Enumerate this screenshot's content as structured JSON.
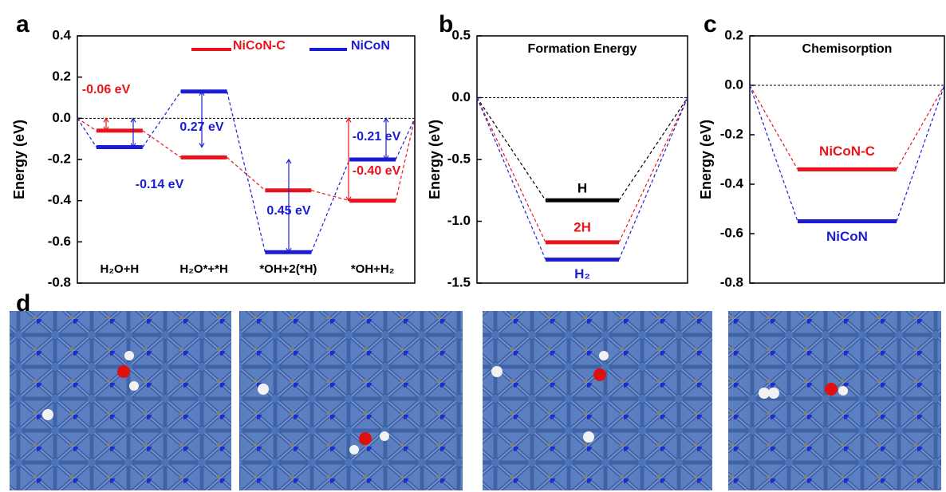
{
  "panel_labels": [
    "a",
    "b",
    "c",
    "d"
  ],
  "chart_data": [
    {
      "type": "energy_diagram",
      "ylabel": "Energy (eV)",
      "categories": [
        "H₂O+H",
        "H₂O*+*H",
        "*OH+2(*H)",
        "*OH+H₂"
      ],
      "series": [
        {
          "name": "NiCoN-C",
          "color": "#e8141c",
          "values": [
            -0.06,
            -0.19,
            -0.35,
            -0.4
          ]
        },
        {
          "name": "NiCoN",
          "color": "#1c1cd6",
          "values": [
            -0.14,
            0.13,
            -0.65,
            -0.2
          ]
        }
      ],
      "annotations": [
        {
          "text": "-0.06 eV",
          "color": "#e8141c"
        },
        {
          "text": "-0.14 eV",
          "color": "#1c1cd6"
        },
        {
          "text": "0.27 eV",
          "color": "#1c1cd6"
        },
        {
          "text": "0.45 eV",
          "color": "#1c1cd6"
        },
        {
          "text": "-0.21 eV",
          "color": "#1c1cd6"
        },
        {
          "text": "-0.40 eV",
          "color": "#e8141c"
        }
      ],
      "ylim": [
        -0.8,
        0.4
      ],
      "yticks": [
        0.4,
        0.2,
        {
          "value": 0,
          "label": "0.0"
        },
        -0.2,
        -0.4,
        -0.6,
        -0.8
      ],
      "zero_line": true,
      "legend": "top"
    },
    {
      "type": "energy_diagram",
      "title": "Formation Energy",
      "ylabel": "Energy (eV)",
      "series": [
        {
          "name": "H",
          "color": "#000000",
          "values": [
            -0.83
          ]
        },
        {
          "name": "2H",
          "color": "#e8141c",
          "values": [
            -1.17
          ]
        },
        {
          "name": "H₂",
          "color": "#1c1cd6",
          "values": [
            -1.31
          ]
        }
      ],
      "ylim": [
        -1.5,
        0.5
      ],
      "yticks": [
        0.5,
        {
          "value": 0,
          "label": "0.0"
        },
        -0.5,
        {
          "value": -1,
          "label": "-1.0"
        },
        -1.5
      ],
      "zero_line": true
    },
    {
      "type": "energy_diagram",
      "title": "Chemisorption",
      "ylabel": "Energy (eV)",
      "series": [
        {
          "name": "NiCoN-C",
          "color": "#e8141c",
          "values": [
            -0.34
          ]
        },
        {
          "name": "NiCoN",
          "color": "#1c1cd6",
          "values": [
            -0.55
          ]
        }
      ],
      "ylim": [
        -0.8,
        0.2
      ],
      "yticks": [
        0.2,
        {
          "value": 0,
          "label": "0.0"
        },
        -0.2,
        -0.4,
        -0.6,
        -0.8
      ],
      "zero_line": true
    }
  ]
}
